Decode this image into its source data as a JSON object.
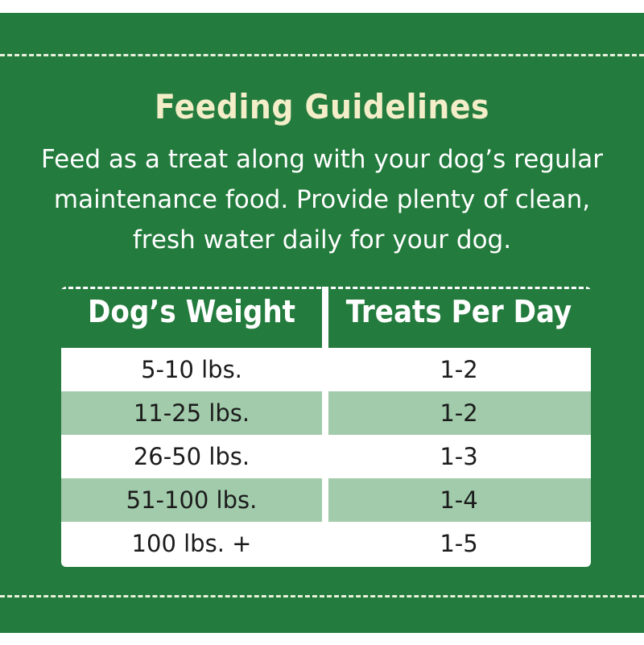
{
  "header": {
    "title": "Feeding Guidelines"
  },
  "intro": [
    "Feed as a treat along with your dog’s regular",
    "maintenance food. Provide plenty of clean,",
    "fresh water daily for your dog."
  ],
  "table": {
    "columns": [
      "Dog’s Weight",
      "Treats Per Day"
    ],
    "rows": [
      [
        "5-10 lbs.",
        "1-2"
      ],
      [
        "11-25 lbs.",
        "1-2"
      ],
      [
        "26-50 lbs.",
        "1-3"
      ],
      [
        "51-100 lbs.",
        "1-4"
      ],
      [
        "100 lbs. +",
        "1-5"
      ]
    ]
  }
}
